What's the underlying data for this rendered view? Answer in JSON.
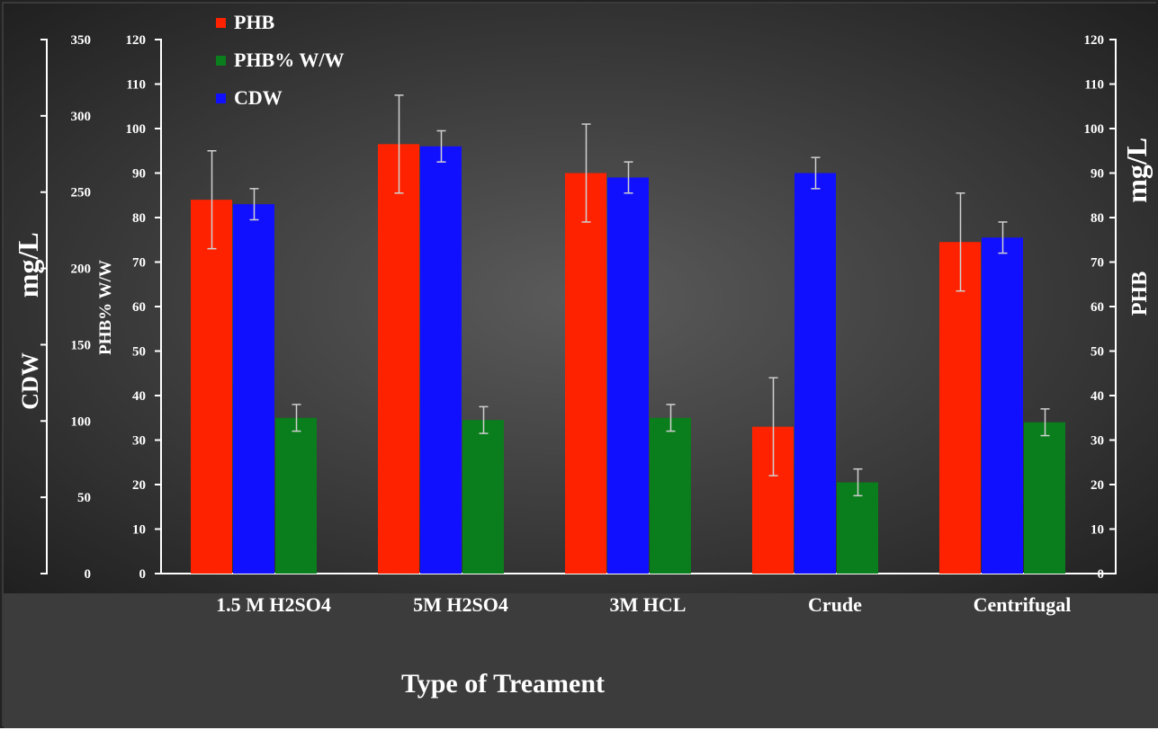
{
  "chart_data": {
    "type": "bar",
    "title": "",
    "xlabel": "Type of Treament",
    "categories": [
      "1.5 M  H2SO4",
      "5M  H2SO4",
      "3M HCL",
      "Crude",
      "Centrifugal"
    ],
    "series": [
      {
        "name": "PHB",
        "axis": "right",
        "color": "#ff2200",
        "values": [
          84,
          96.5,
          90,
          33,
          74.5
        ],
        "errors": [
          11,
          11,
          11,
          11,
          11
        ]
      },
      {
        "name": "CDW",
        "axis": "right",
        "color": "#1010ff",
        "values": [
          83,
          96,
          89,
          90,
          75.5
        ],
        "errors": [
          3.5,
          3.5,
          3.5,
          3.5,
          3.5
        ]
      },
      {
        "name": "PHB% W/W",
        "axis": "left-inner",
        "color": "#0a7d1c",
        "values": [
          35,
          34.5,
          35,
          20.5,
          34
        ],
        "errors": [
          3,
          3,
          3,
          3,
          3
        ]
      }
    ],
    "axes": {
      "left_outer": {
        "label_parts": [
          "CDW",
          "mg/L"
        ],
        "range": [
          0,
          350
        ],
        "ticks": [
          0,
          50,
          100,
          150,
          200,
          250,
          300,
          350
        ]
      },
      "left_inner": {
        "label": "PHB% W/W",
        "range": [
          0,
          120
        ],
        "ticks": [
          0,
          10,
          20,
          30,
          40,
          50,
          60,
          70,
          80,
          90,
          100,
          110,
          120
        ]
      },
      "right": {
        "label_parts": [
          "PHB",
          "mg/L"
        ],
        "range": [
          0,
          120
        ],
        "ticks": [
          0,
          10,
          20,
          30,
          40,
          50,
          60,
          70,
          80,
          90,
          100,
          110,
          120
        ]
      }
    },
    "legend_order": [
      "PHB",
      "PHB% W/W",
      "CDW"
    ],
    "legend_placement": "top-left",
    "grid": false
  }
}
